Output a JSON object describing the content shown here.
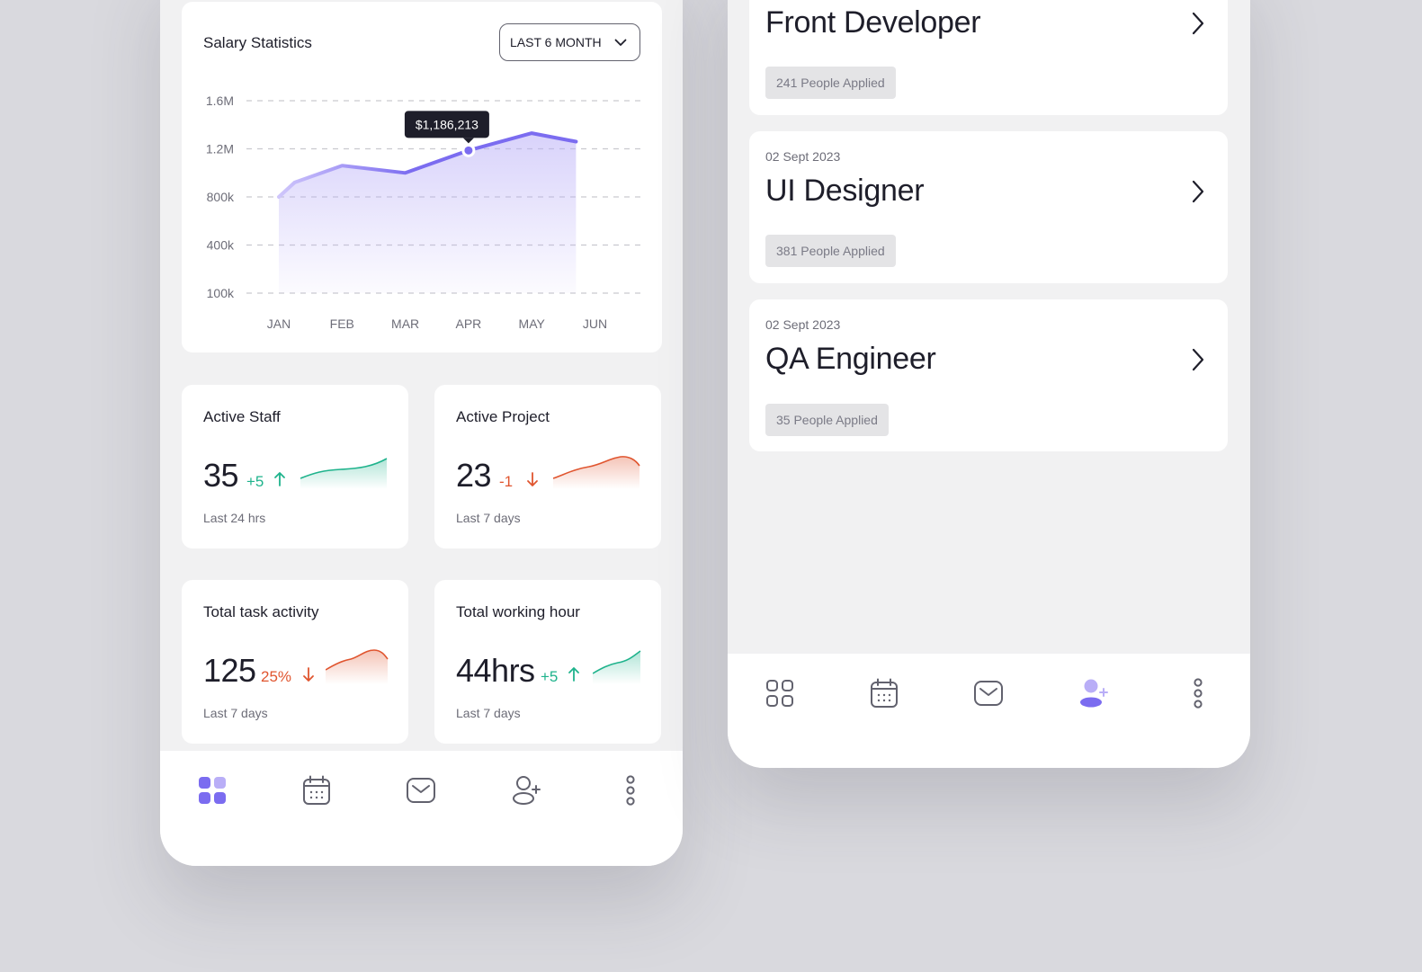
{
  "salary": {
    "title": "Salary Statistics",
    "period_select": "LAST 6 MONTH",
    "tooltip": "$1,186,213",
    "colors": {
      "line": "#7b6cf0",
      "fill": "#b9aef7"
    }
  },
  "chart_data": {
    "type": "area",
    "title": "Salary Statistics",
    "categories": [
      "JAN",
      "FEB",
      "MAR",
      "APR",
      "MAY",
      "JUN"
    ],
    "y_tick_labels": [
      "1.6M",
      "1.2M",
      "800k",
      "400k",
      "100k"
    ],
    "series": [
      {
        "x": [
          0,
          0.25,
          1,
          2,
          3,
          4,
          4.7
        ],
        "values": [
          800000,
          920000,
          1060000,
          1000000,
          1186213,
          1330000,
          1260000
        ]
      }
    ],
    "highlight": {
      "category": "APR",
      "value": 1186213,
      "label": "$1,186,213"
    },
    "grid": true,
    "legend": "none"
  },
  "stats": [
    {
      "title": "Active Staff",
      "value": "35",
      "delta": "+5",
      "trend": "up",
      "sub": "Last 24 hrs"
    },
    {
      "title": "Active Project",
      "value": "23",
      "delta": "-1",
      "trend": "down",
      "sub": "Last 7 days"
    },
    {
      "title": "Total task activity",
      "value": "125",
      "delta": "25%",
      "trend": "down",
      "sub": "Last 7 days"
    },
    {
      "title": "Total working hour",
      "value": "44hrs",
      "delta": "+5",
      "trend": "up",
      "sub": "Last 7 days"
    }
  ],
  "jobs": [
    {
      "title": "Front Developer",
      "applied": "241 People Applied"
    },
    {
      "date": "02 Sept 2023",
      "title": "UI Designer",
      "applied": "381 People Applied"
    },
    {
      "date": "02 Sept 2023",
      "title": "QA Engineer",
      "applied": "35 People Applied"
    }
  ],
  "nav": {
    "items": [
      "dashboard-icon",
      "calendar-icon",
      "mail-icon",
      "add-user-icon",
      "more-icon"
    ],
    "active_left": "dashboard-icon",
    "active_right": "add-user-icon",
    "colors": {
      "active": "#7b6cf0",
      "inactive": "#62626e"
    }
  }
}
